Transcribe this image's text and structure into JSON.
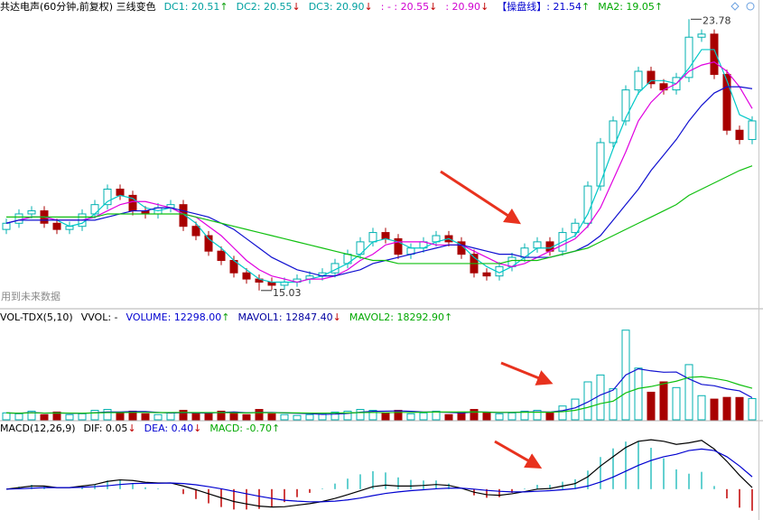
{
  "chart_data": [
    {
      "type": "candlestick",
      "title": "共达电声(60分钟,前复权) 三线变色",
      "header_items": [
        {
          "text": "DC1: 20.51",
          "arrow": "↑",
          "color": "#00a0a0"
        },
        {
          "text": "DC2: 20.55",
          "arrow": "↓",
          "color": "#00a0a0"
        },
        {
          "text": "DC3: 20.90",
          "arrow": "↓",
          "color": "#00a0a0"
        },
        {
          "text": ": - : 20.55",
          "arrow": "↓",
          "color": "#d000d0"
        },
        {
          "text": ": 20.90",
          "arrow": "↓",
          "color": "#d000d0"
        },
        {
          "text": "【操盘线】: 21.54",
          "arrow": "↑",
          "color": "#0000d0"
        },
        {
          "text": "MA2: 19.05",
          "arrow": "↑",
          "color": "#00a800"
        }
      ],
      "note": "用到未来数据",
      "ylim": [
        14.5,
        24.4
      ],
      "up_color": "#00b0b0",
      "down_color": "#a80000",
      "open": [
        17.0,
        17.2,
        17.5,
        17.6,
        17.2,
        17.0,
        17.1,
        17.5,
        17.8,
        18.3,
        18.1,
        17.6,
        17.5,
        17.7,
        17.8,
        17.1,
        16.8,
        16.3,
        16.0,
        15.6,
        15.4,
        15.3,
        15.2,
        15.3,
        15.4,
        15.5,
        15.6,
        15.9,
        16.2,
        16.6,
        16.9,
        16.7,
        16.2,
        16.4,
        16.6,
        16.8,
        16.6,
        16.2,
        15.6,
        15.5,
        15.8,
        16.1,
        16.4,
        16.6,
        16.3,
        16.9,
        17.2,
        18.4,
        19.8,
        20.5,
        21.5,
        22.1,
        21.7,
        21.5,
        21.9,
        23.2,
        23.3,
        22.0,
        20.2,
        19.9
      ],
      "high": [
        17.35,
        17.65,
        17.75,
        17.75,
        17.35,
        17.25,
        17.65,
        17.95,
        18.45,
        18.45,
        18.25,
        17.75,
        17.85,
        17.95,
        17.95,
        17.25,
        16.95,
        16.45,
        16.15,
        15.75,
        15.55,
        15.45,
        15.45,
        15.55,
        15.65,
        15.75,
        16.05,
        16.35,
        16.75,
        17.05,
        17.05,
        16.85,
        16.55,
        16.75,
        16.95,
        16.95,
        16.75,
        16.35,
        15.75,
        15.95,
        16.25,
        16.55,
        16.75,
        16.75,
        17.05,
        17.35,
        18.55,
        19.95,
        20.65,
        21.65,
        22.25,
        22.25,
        21.85,
        22.05,
        23.78,
        23.45,
        23.45,
        22.15,
        20.35,
        20.65
      ],
      "low": [
        16.85,
        17.05,
        17.35,
        17.05,
        16.85,
        16.85,
        16.95,
        17.35,
        17.65,
        17.95,
        17.45,
        17.35,
        17.35,
        17.55,
        16.95,
        16.65,
        16.15,
        15.85,
        15.45,
        15.25,
        15.03,
        15.05,
        15.05,
        15.15,
        15.25,
        15.35,
        15.45,
        15.75,
        16.05,
        16.45,
        16.55,
        16.05,
        16.05,
        16.25,
        16.45,
        16.45,
        16.05,
        15.45,
        15.35,
        15.35,
        15.65,
        15.95,
        16.25,
        16.15,
        16.15,
        16.75,
        17.05,
        18.25,
        19.65,
        20.35,
        21.35,
        21.55,
        21.35,
        21.35,
        21.75,
        23.05,
        21.85,
        20.05,
        19.75,
        19.75
      ],
      "close": [
        17.2,
        17.5,
        17.6,
        17.2,
        17.0,
        17.1,
        17.5,
        17.8,
        18.3,
        18.1,
        17.6,
        17.5,
        17.7,
        17.8,
        17.1,
        16.8,
        16.3,
        16.0,
        15.6,
        15.4,
        15.3,
        15.2,
        15.3,
        15.4,
        15.5,
        15.6,
        15.9,
        16.2,
        16.6,
        16.9,
        16.7,
        16.2,
        16.4,
        16.6,
        16.8,
        16.6,
        16.2,
        15.6,
        15.5,
        15.8,
        16.1,
        16.4,
        16.6,
        16.3,
        16.9,
        17.2,
        18.4,
        19.8,
        20.5,
        21.5,
        22.1,
        21.7,
        21.5,
        21.9,
        23.2,
        23.3,
        22.0,
        20.2,
        19.9,
        20.5
      ],
      "high_label": 23.78,
      "low_label": 15.03,
      "lines": [
        {
          "color": "#00c8c8",
          "values": [
            17.2,
            17.3,
            17.4,
            17.4,
            17.3,
            17.1,
            17.2,
            17.5,
            17.9,
            18.1,
            18.0,
            17.7,
            17.6,
            17.7,
            17.5,
            17.2,
            16.7,
            16.4,
            16.0,
            15.7,
            15.4,
            15.3,
            15.3,
            15.3,
            15.4,
            15.5,
            15.7,
            15.9,
            16.2,
            16.6,
            16.7,
            16.6,
            16.4,
            16.4,
            16.6,
            16.7,
            16.5,
            16.1,
            15.8,
            15.6,
            15.8,
            16.1,
            16.4,
            16.4,
            16.6,
            16.8,
            17.5,
            18.5,
            19.6,
            20.6,
            21.4,
            21.8,
            21.8,
            21.7,
            22.2,
            22.8,
            22.8,
            21.8,
            20.7,
            20.51
          ]
        },
        {
          "color": "#e000e0",
          "values": [
            17.2,
            17.3,
            17.4,
            17.4,
            17.3,
            17.3,
            17.3,
            17.4,
            17.6,
            17.8,
            17.9,
            17.9,
            17.8,
            17.7,
            17.5,
            17.4,
            17.1,
            16.8,
            16.4,
            16.0,
            15.7,
            15.5,
            15.4,
            15.3,
            15.4,
            15.4,
            15.5,
            15.7,
            16.0,
            16.2,
            16.5,
            16.6,
            16.6,
            16.6,
            16.5,
            16.5,
            16.5,
            16.3,
            16.1,
            15.9,
            15.8,
            15.9,
            16.1,
            16.3,
            16.5,
            16.7,
            17.1,
            17.7,
            18.6,
            19.5,
            20.5,
            21.1,
            21.5,
            21.7,
            22.1,
            22.3,
            22.4,
            22.1,
            21.6,
            20.9
          ]
        },
        {
          "color": "#1010d0",
          "values": [
            17.2,
            17.3,
            17.3,
            17.3,
            17.3,
            17.3,
            17.3,
            17.3,
            17.4,
            17.5,
            17.6,
            17.6,
            17.7,
            17.7,
            17.6,
            17.5,
            17.4,
            17.2,
            17.0,
            16.7,
            16.4,
            16.1,
            15.9,
            15.7,
            15.6,
            15.5,
            15.5,
            15.6,
            15.7,
            15.9,
            16.0,
            16.1,
            16.2,
            16.3,
            16.4,
            16.5,
            16.5,
            16.4,
            16.3,
            16.2,
            16.2,
            16.1,
            16.1,
            16.1,
            16.2,
            16.3,
            16.5,
            16.8,
            17.3,
            17.8,
            18.3,
            18.9,
            19.4,
            19.9,
            20.5,
            21.0,
            21.4,
            21.6,
            21.6,
            21.54
          ]
        },
        {
          "color": "#10c010",
          "values": [
            17.4,
            17.4,
            17.4,
            17.4,
            17.4,
            17.4,
            17.4,
            17.4,
            17.5,
            17.5,
            17.5,
            17.5,
            17.5,
            17.5,
            17.5,
            17.4,
            17.3,
            17.2,
            17.1,
            17.0,
            16.9,
            16.8,
            16.7,
            16.6,
            16.5,
            16.4,
            16.3,
            16.2,
            16.1,
            16.0,
            16.0,
            15.9,
            15.9,
            15.9,
            15.9,
            15.9,
            15.9,
            15.9,
            15.9,
            15.9,
            16.0,
            16.0,
            16.0,
            16.1,
            16.2,
            16.3,
            16.4,
            16.6,
            16.8,
            17.0,
            17.2,
            17.4,
            17.6,
            17.8,
            18.1,
            18.3,
            18.5,
            18.7,
            18.9,
            19.05
          ]
        }
      ]
    },
    {
      "type": "volume",
      "title": "VOL-TDX(5,10)",
      "header_items": [
        {
          "text": "VVOL: -",
          "color": "#000000"
        },
        {
          "text": "VOLUME: 12298.00",
          "arrow": "↑",
          "color": "#0000d0"
        },
        {
          "text": "MAVOL1: 12847.40",
          "arrow": "↓",
          "color": "#0000a0"
        },
        {
          "text": "MAVOL2: 18292.90",
          "arrow": "↑",
          "color": "#00a800"
        }
      ],
      "ylim": [
        0,
        55000
      ],
      "values": [
        4000,
        3500,
        5000,
        3000,
        4500,
        3000,
        3500,
        5500,
        6000,
        4000,
        5000,
        3500,
        3000,
        4000,
        5500,
        4000,
        3500,
        5000,
        4500,
        3000,
        6000,
        3500,
        3000,
        2500,
        3000,
        3500,
        4500,
        5000,
        6000,
        5500,
        4000,
        5500,
        3500,
        4000,
        5000,
        3000,
        4500,
        6000,
        4000,
        3500,
        4000,
        5000,
        5500,
        4000,
        8000,
        12000,
        22000,
        26000,
        18000,
        52000,
        30000,
        16000,
        22000,
        18692,
        32000,
        14000,
        12000,
        13000,
        12939,
        12298
      ],
      "lines": [
        {
          "color": "#1010d0",
          "values": [
            4000,
            3800,
            4200,
            3900,
            4000,
            3800,
            3700,
            4100,
            4500,
            4500,
            4800,
            4800,
            4300,
            3900,
            4200,
            4000,
            3900,
            4300,
            4500,
            4100,
            4300,
            4300,
            4000,
            3800,
            3600,
            3100,
            3300,
            3700,
            4400,
            4900,
            5000,
            5200,
            4900,
            4500,
            4500,
            4300,
            4000,
            4500,
            4500,
            4200,
            4300,
            4500,
            4600,
            4500,
            5300,
            6900,
            10300,
            14400,
            17200,
            26000,
            29600,
            28400,
            27600,
            27738,
            23738,
            20538,
            19738,
            17938,
            16788,
            12847.4
          ]
        },
        {
          "color": "#10c010",
          "values": [
            4000,
            3800,
            4100,
            3900,
            4000,
            3900,
            3800,
            4000,
            4200,
            4200,
            4300,
            4300,
            4200,
            4200,
            4300,
            4200,
            4200,
            4200,
            4100,
            4000,
            4200,
            4100,
            4100,
            4000,
            3900,
            3900,
            3900,
            4000,
            4200,
            4300,
            4100,
            4300,
            4300,
            4400,
            4500,
            4500,
            4500,
            4600,
            4400,
            4300,
            4300,
            4400,
            4400,
            4400,
            4700,
            5500,
            7200,
            9400,
            10800,
            15600,
            18200,
            19300,
            20900,
            22400,
            24600,
            25000,
            24000,
            22700,
            20300,
            18292.9
          ]
        }
      ]
    },
    {
      "type": "macd",
      "title": "MACD(12,26,9)",
      "header_items": [
        {
          "text": "DIF: 0.05",
          "arrow": "↓",
          "color": "#000000"
        },
        {
          "text": "DEA: 0.40",
          "arrow": "↓",
          "color": "#0000d0"
        },
        {
          "text": "MACD: -0.70",
          "arrow": "↑",
          "color": "#00a800"
        }
      ],
      "ylim": [
        -1.0,
        2.1
      ],
      "pos_color": "#30c0c0",
      "neg_color": "#c00000",
      "values": [
        0,
        0.08,
        0.14,
        0.1,
        0,
        0,
        0.08,
        0.14,
        0.28,
        0.3,
        0.2,
        0.06,
        0.02,
        0,
        -0.16,
        -0.32,
        -0.46,
        -0.58,
        -0.66,
        -0.66,
        -0.64,
        -0.56,
        -0.42,
        -0.26,
        -0.12,
        0.02,
        0.18,
        0.34,
        0.48,
        0.58,
        0.54,
        0.38,
        0.3,
        0.28,
        0.28,
        0.18,
        0,
        -0.2,
        -0.28,
        -0.26,
        -0.12,
        0.02,
        0.14,
        0.14,
        0.24,
        0.32,
        0.6,
        1.04,
        1.32,
        1.54,
        1.56,
        1.34,
        1.0,
        0.64,
        0.5,
        0.56,
        0.1,
        -0.3,
        -0.6,
        -0.7
      ],
      "lines": [
        {
          "color": "#000000",
          "values": [
            0.0,
            0.05,
            0.1,
            0.1,
            0.05,
            0.05,
            0.1,
            0.15,
            0.25,
            0.3,
            0.28,
            0.22,
            0.2,
            0.2,
            0.1,
            -0.02,
            -0.15,
            -0.28,
            -0.4,
            -0.48,
            -0.55,
            -0.58,
            -0.57,
            -0.52,
            -0.47,
            -0.4,
            -0.3,
            -0.18,
            -0.05,
            0.08,
            0.13,
            0.1,
            0.1,
            0.12,
            0.15,
            0.12,
            0.03,
            -0.1,
            -0.18,
            -0.2,
            -0.15,
            -0.08,
            0.0,
            0.02,
            0.1,
            0.18,
            0.4,
            0.75,
            1.05,
            1.35,
            1.55,
            1.6,
            1.55,
            1.45,
            1.5,
            1.58,
            1.3,
            0.9,
            0.45,
            0.05
          ]
        },
        {
          "color": "#0000d0",
          "values": [
            0.0,
            0.01,
            0.03,
            0.05,
            0.05,
            0.05,
            0.06,
            0.08,
            0.11,
            0.15,
            0.18,
            0.19,
            0.19,
            0.2,
            0.18,
            0.14,
            0.08,
            0.01,
            -0.07,
            -0.15,
            -0.23,
            -0.3,
            -0.36,
            -0.39,
            -0.41,
            -0.41,
            -0.39,
            -0.35,
            -0.29,
            -0.21,
            -0.14,
            -0.09,
            -0.05,
            -0.02,
            0.01,
            0.03,
            0.03,
            0.0,
            -0.04,
            -0.07,
            -0.09,
            -0.09,
            -0.07,
            -0.05,
            -0.02,
            0.02,
            0.1,
            0.23,
            0.39,
            0.58,
            0.77,
            0.93,
            1.05,
            1.13,
            1.25,
            1.3,
            1.25,
            1.05,
            0.75,
            0.4
          ]
        }
      ]
    }
  ],
  "arrow_colors": {
    "↑": "#10a010",
    "↓": "#c00000"
  }
}
